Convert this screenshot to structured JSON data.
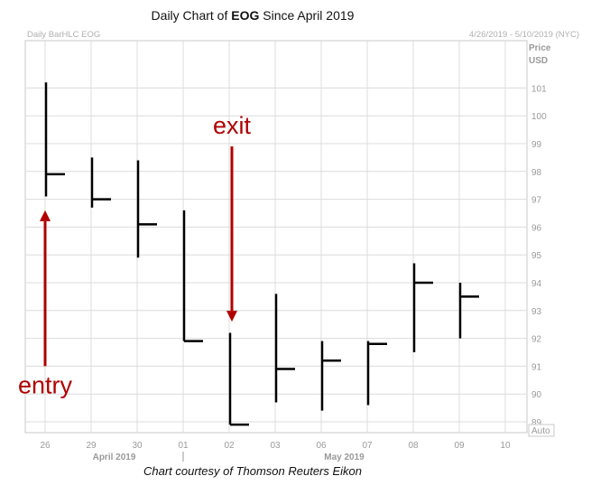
{
  "title_prefix": "Daily Chart of ",
  "title_bold": "EOG",
  "title_suffix": " Since April 2019",
  "header_left": "Daily BarHLC EOG",
  "header_right": "4/26/2019 - 5/10/2019 (NYC)",
  "price_label": "Price",
  "currency_label": "USD",
  "auto_label": "Auto",
  "caption": "Chart courtesy of Thomson Reuters Eikon",
  "colors": {
    "bars": "#000000",
    "arrows": "#b00000",
    "grid": "#dcdcdc",
    "frame": "#c8c8c8"
  },
  "chart_data": {
    "type": "bar",
    "subtype": "HLC",
    "categories": [
      "26",
      "29",
      "30",
      "01",
      "02",
      "03",
      "06",
      "07",
      "08",
      "09",
      "10"
    ],
    "month_labels": [
      {
        "text": "April 2019",
        "between": [
          "29",
          "30"
        ]
      },
      {
        "text": "May 2019",
        "between": [
          "06",
          "07"
        ]
      }
    ],
    "bars": [
      {
        "date": "26",
        "high": 101.2,
        "low": 97.1,
        "close": 97.9
      },
      {
        "date": "29",
        "high": 98.5,
        "low": 96.7,
        "close": 97.0
      },
      {
        "date": "30",
        "high": 98.4,
        "low": 94.9,
        "close": 96.1
      },
      {
        "date": "01",
        "high": 96.6,
        "low": 91.9,
        "close": 91.9
      },
      {
        "date": "02",
        "high": 92.2,
        "low": 88.9,
        "close": 88.9
      },
      {
        "date": "03",
        "high": 93.6,
        "low": 89.7,
        "close": 90.9
      },
      {
        "date": "06",
        "high": 91.9,
        "low": 89.4,
        "close": 91.2
      },
      {
        "date": "07",
        "high": 91.9,
        "low": 89.6,
        "close": 91.8
      },
      {
        "date": "08",
        "high": 94.7,
        "low": 91.5,
        "close": 94.0
      },
      {
        "date": "09",
        "high": 94.0,
        "low": 92.0,
        "close": 93.5
      }
    ],
    "y_ticks": [
      89,
      90,
      91,
      92,
      93,
      94,
      95,
      96,
      97,
      98,
      99,
      100,
      101
    ],
    "ylim": [
      88.7,
      102.0
    ],
    "grid": true,
    "annotations": [
      {
        "text": "entry",
        "date": "26",
        "direction": "up",
        "from": 91.0,
        "to": 96.6
      },
      {
        "text": "exit",
        "date": "02",
        "direction": "down",
        "from": 98.9,
        "to": 92.6
      }
    ]
  }
}
